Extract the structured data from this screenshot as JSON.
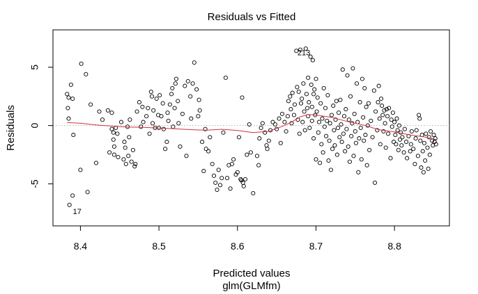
{
  "chart_data": {
    "type": "scatter",
    "title": "Residuals vs Fitted",
    "xlabel": "Predicted values",
    "xlabel_sub": "glm(GLMfm)",
    "ylabel": "Residuals",
    "xlim": [
      8.365,
      8.87
    ],
    "ylim": [
      -8.6,
      8.2
    ],
    "x_ticks": [
      8.4,
      8.5,
      8.6,
      8.7,
      8.8
    ],
    "x_tick_labels": [
      "8.4",
      "8.5",
      "8.6",
      "8.7",
      "8.8"
    ],
    "y_ticks": [
      -5,
      0,
      5
    ],
    "y_tick_labels": [
      "-5",
      "0",
      "5"
    ],
    "reference_line": {
      "y": 0,
      "style": "dotted",
      "color": "#b0b0b0"
    },
    "point_color": "#000000",
    "smooth_color": "#d03040",
    "annotations": [
      {
        "label": "17",
        "x": 8.386,
        "y": -7.1
      },
      {
        "label": "213",
        "x": 8.672,
        "y": 6.5
      }
    ],
    "smooth": {
      "x": [
        8.383,
        8.4,
        8.42,
        8.44,
        8.46,
        8.48,
        8.5,
        8.52,
        8.54,
        8.56,
        8.58,
        8.6,
        8.62,
        8.64,
        8.66,
        8.67,
        8.68,
        8.69,
        8.7,
        8.72,
        8.74,
        8.76,
        8.78,
        8.8,
        8.82,
        8.84,
        8.853
      ],
      "y": [
        0.25,
        0.2,
        0.05,
        -0.05,
        -0.12,
        -0.15,
        -0.22,
        -0.28,
        -0.35,
        -0.4,
        -0.32,
        -0.42,
        -0.6,
        -0.5,
        0.0,
        0.35,
        0.75,
        0.95,
        0.9,
        0.7,
        0.35,
        0.05,
        -0.35,
        -0.55,
        -0.8,
        -1.0,
        -1.2
      ]
    },
    "points": [
      [
        8.386,
        -6.8
      ],
      [
        8.39,
        -6.0
      ],
      [
        8.383,
        2.7
      ],
      [
        8.385,
        2.4
      ],
      [
        8.384,
        1.5
      ],
      [
        8.385,
        0.6
      ],
      [
        8.388,
        3.5
      ],
      [
        8.39,
        2.3
      ],
      [
        8.391,
        -0.8
      ],
      [
        8.4,
        -3.8
      ],
      [
        8.401,
        5.3
      ],
      [
        8.407,
        4.4
      ],
      [
        8.409,
        -5.7
      ],
      [
        8.413,
        1.8
      ],
      [
        8.42,
        -3.2
      ],
      [
        8.424,
        1.2
      ],
      [
        8.428,
        0.5
      ],
      [
        8.435,
        1.3
      ],
      [
        8.437,
        -2.3
      ],
      [
        8.44,
        1.1
      ],
      [
        8.44,
        -0.3
      ],
      [
        8.442,
        -0.6
      ],
      [
        8.442,
        -1.2
      ],
      [
        8.443,
        -1.8
      ],
      [
        8.443,
        -2.5
      ],
      [
        8.445,
        -0.2
      ],
      [
        8.447,
        -0.7
      ],
      [
        8.448,
        -2.7
      ],
      [
        8.452,
        0.3
      ],
      [
        8.455,
        -2.9
      ],
      [
        8.456,
        -1.4
      ],
      [
        8.457,
        -1.9
      ],
      [
        8.458,
        -3.3
      ],
      [
        8.46,
        -0.1
      ],
      [
        8.461,
        -2.6
      ],
      [
        8.462,
        -1.0
      ],
      [
        8.463,
        0.5
      ],
      [
        8.465,
        -3.1
      ],
      [
        8.467,
        -2.1
      ],
      [
        8.469,
        -3.5
      ],
      [
        8.47,
        -3.3
      ],
      [
        8.472,
        1.2
      ],
      [
        8.475,
        2.0
      ],
      [
        8.477,
        -0.1
      ],
      [
        8.479,
        1.6
      ],
      [
        8.48,
        0.3
      ],
      [
        8.484,
        0.8
      ],
      [
        8.486,
        1.5
      ],
      [
        8.488,
        -0.7
      ],
      [
        8.49,
        2.9
      ],
      [
        8.491,
        2.5
      ],
      [
        8.492,
        0.2
      ],
      [
        8.493,
        1.3
      ],
      [
        8.495,
        -0.2
      ],
      [
        8.497,
        2.3
      ],
      [
        8.499,
        0.9
      ],
      [
        8.5,
        -0.2
      ],
      [
        8.501,
        2.6
      ],
      [
        8.503,
        0.8
      ],
      [
        8.505,
        1.9
      ],
      [
        8.506,
        -0.3
      ],
      [
        8.508,
        -2.0
      ],
      [
        8.51,
        -1.4
      ],
      [
        8.511,
        1.1
      ],
      [
        8.512,
        0.4
      ],
      [
        8.514,
        1.8
      ],
      [
        8.516,
        2.7
      ],
      [
        8.517,
        3.2
      ],
      [
        8.518,
        -0.1
      ],
      [
        8.52,
        1.5
      ],
      [
        8.521,
        3.6
      ],
      [
        8.522,
        4.0
      ],
      [
        8.524,
        2.1
      ],
      [
        8.525,
        0.2
      ],
      [
        8.527,
        -1.8
      ],
      [
        8.53,
        1.0
      ],
      [
        8.533,
        3.4
      ],
      [
        8.535,
        -2.6
      ],
      [
        8.537,
        3.8
      ],
      [
        8.54,
        2.5
      ],
      [
        8.541,
        0.6
      ],
      [
        8.543,
        3.6
      ],
      [
        8.545,
        5.4
      ],
      [
        8.548,
        3.1
      ],
      [
        8.55,
        0.8
      ],
      [
        8.551,
        2.2
      ],
      [
        8.552,
        1.3
      ],
      [
        8.555,
        -1.4
      ],
      [
        8.557,
        -3.9
      ],
      [
        8.559,
        -0.3
      ],
      [
        8.56,
        -2.0
      ],
      [
        8.563,
        -2.2
      ],
      [
        8.565,
        -1.0
      ],
      [
        8.568,
        -3.3
      ],
      [
        8.57,
        -4.3
      ],
      [
        8.572,
        -4.9
      ],
      [
        8.574,
        -5.5
      ],
      [
        8.576,
        -3.8
      ],
      [
        8.578,
        -5.1
      ],
      [
        8.58,
        -4.5
      ],
      [
        8.582,
        -0.6
      ],
      [
        8.585,
        4.1
      ],
      [
        8.587,
        -4.5
      ],
      [
        8.589,
        -3.4
      ],
      [
        8.591,
        -5.4
      ],
      [
        8.593,
        -3.3
      ],
      [
        8.595,
        -2.9
      ],
      [
        8.598,
        -4.2
      ],
      [
        8.6,
        -4.0
      ],
      [
        8.602,
        -1.0
      ],
      [
        8.604,
        -4.6
      ],
      [
        8.605,
        -4.7
      ],
      [
        8.606,
        2.4
      ],
      [
        8.607,
        -4.9
      ],
      [
        8.608,
        -5.2
      ],
      [
        8.61,
        -4.6
      ],
      [
        8.612,
        -2.5
      ],
      [
        8.615,
        0.1
      ],
      [
        8.617,
        -2.3
      ],
      [
        8.62,
        -5.8
      ],
      [
        8.625,
        -2.6
      ],
      [
        8.627,
        -3.4
      ],
      [
        8.628,
        -1.1
      ],
      [
        8.63,
        -0.2
      ],
      [
        8.632,
        0.2
      ],
      [
        8.635,
        -0.6
      ],
      [
        8.637,
        -1.7
      ],
      [
        8.638,
        -2.0
      ],
      [
        8.64,
        -1.3
      ],
      [
        8.642,
        -0.4
      ],
      [
        8.645,
        0.3
      ],
      [
        8.648,
        0.1
      ],
      [
        8.65,
        -0.3
      ],
      [
        8.653,
        0.6
      ],
      [
        8.655,
        -1.5
      ],
      [
        8.657,
        1.0
      ],
      [
        8.66,
        0.3
      ],
      [
        8.662,
        -0.5
      ],
      [
        8.664,
        0.8
      ],
      [
        8.665,
        2.1
      ],
      [
        8.667,
        2.5
      ],
      [
        8.668,
        1.4
      ],
      [
        8.669,
        0.2
      ],
      [
        8.67,
        2.8
      ],
      [
        8.672,
        0.9
      ],
      [
        8.673,
        1.8
      ],
      [
        8.675,
        6.4
      ],
      [
        8.676,
        3.3
      ],
      [
        8.677,
        0.5
      ],
      [
        8.678,
        2.9
      ],
      [
        8.679,
        -0.7
      ],
      [
        8.68,
        6.5
      ],
      [
        8.681,
        1.9
      ],
      [
        8.682,
        2.3
      ],
      [
        8.683,
        0.3
      ],
      [
        8.684,
        3.6
      ],
      [
        8.685,
        1.2
      ],
      [
        8.686,
        -0.4
      ],
      [
        8.687,
        6.6
      ],
      [
        8.688,
        2.7
      ],
      [
        8.689,
        1.5
      ],
      [
        8.69,
        4.1
      ],
      [
        8.69,
        0.8
      ],
      [
        8.691,
        2.0
      ],
      [
        8.692,
        -0.2
      ],
      [
        8.693,
        5.9
      ],
      [
        8.694,
        3.5
      ],
      [
        8.695,
        0.4
      ],
      [
        8.695,
        1.6
      ],
      [
        8.696,
        5.6
      ],
      [
        8.697,
        2.7
      ],
      [
        8.697,
        -1.1
      ],
      [
        8.698,
        3.1
      ],
      [
        8.699,
        0.9
      ],
      [
        8.7,
        4.0
      ],
      [
        8.7,
        -2.9
      ],
      [
        8.701,
        1.2
      ],
      [
        8.702,
        2.4
      ],
      [
        8.703,
        -0.6
      ],
      [
        8.704,
        0.3
      ],
      [
        8.705,
        -3.2
      ],
      [
        8.706,
        1.9
      ],
      [
        8.707,
        -1.6
      ],
      [
        8.708,
        0.6
      ],
      [
        8.709,
        -2.3
      ],
      [
        8.71,
        3.2
      ],
      [
        8.711,
        -0.1
      ],
      [
        8.712,
        1.5
      ],
      [
        8.713,
        -0.9
      ],
      [
        8.714,
        0.4
      ],
      [
        8.715,
        2.6
      ],
      [
        8.716,
        -3.0
      ],
      [
        8.717,
        -1.3
      ],
      [
        8.718,
        0.2
      ],
      [
        8.719,
        -3.8
      ],
      [
        8.72,
        0.9
      ],
      [
        8.721,
        -2.0
      ],
      [
        8.722,
        1.7
      ],
      [
        8.723,
        -0.4
      ],
      [
        8.724,
        -1.7
      ],
      [
        8.725,
        0.5
      ],
      [
        8.726,
        2.1
      ],
      [
        8.727,
        -2.5
      ],
      [
        8.728,
        -0.2
      ],
      [
        8.729,
        1.1
      ],
      [
        8.73,
        -1.0
      ],
      [
        8.731,
        2.2
      ],
      [
        8.732,
        0.1
      ],
      [
        8.733,
        -1.4
      ],
      [
        8.734,
        4.8
      ],
      [
        8.735,
        -0.7
      ],
      [
        8.736,
        0.8
      ],
      [
        8.737,
        -2.2
      ],
      [
        8.738,
        1.4
      ],
      [
        8.739,
        -0.3
      ],
      [
        8.74,
        4.3
      ],
      [
        8.741,
        -1.8
      ],
      [
        8.742,
        0.5
      ],
      [
        8.743,
        -3.1
      ],
      [
        8.744,
        2.5
      ],
      [
        8.745,
        -0.9
      ],
      [
        8.746,
        0.2
      ],
      [
        8.747,
        4.9
      ],
      [
        8.748,
        -2.6
      ],
      [
        8.749,
        1.0
      ],
      [
        8.75,
        -0.5
      ],
      [
        8.751,
        -1.5
      ],
      [
        8.752,
        3.6
      ],
      [
        8.753,
        0.3
      ],
      [
        8.754,
        -4.0
      ],
      [
        8.755,
        -1.1
      ],
      [
        8.756,
        2.0
      ],
      [
        8.757,
        -0.2
      ],
      [
        8.758,
        -2.9
      ],
      [
        8.759,
        4.0
      ],
      [
        8.76,
        0.7
      ],
      [
        8.761,
        -1.3
      ],
      [
        8.762,
        3.2
      ],
      [
        8.763,
        -0.8
      ],
      [
        8.764,
        1.6
      ],
      [
        8.765,
        -3.4
      ],
      [
        8.766,
        0.0
      ],
      [
        8.767,
        1.9
      ],
      [
        8.768,
        -2.1
      ],
      [
        8.77,
        0.4
      ],
      [
        8.772,
        -1.0
      ],
      [
        8.774,
        3.0
      ],
      [
        8.775,
        -4.9
      ],
      [
        8.776,
        1.2
      ],
      [
        8.778,
        -0.4
      ],
      [
        8.779,
        2.0
      ],
      [
        8.78,
        3.4
      ],
      [
        8.781,
        0.6
      ],
      [
        8.782,
        -1.6
      ],
      [
        8.783,
        2.3
      ],
      [
        8.784,
        1.7
      ],
      [
        8.785,
        0.9
      ],
      [
        8.786,
        -0.5
      ],
      [
        8.787,
        1.3
      ],
      [
        8.788,
        0.2
      ],
      [
        8.789,
        -1.9
      ],
      [
        8.79,
        1.4
      ],
      [
        8.791,
        0.8
      ],
      [
        8.792,
        -0.7
      ],
      [
        8.793,
        1.5
      ],
      [
        8.795,
        -2.8
      ],
      [
        8.796,
        0.5
      ],
      [
        8.797,
        -0.1
      ],
      [
        8.798,
        1.1
      ],
      [
        8.799,
        -1.4
      ],
      [
        8.8,
        0.3
      ],
      [
        8.801,
        -0.8
      ],
      [
        8.802,
        -1.6
      ],
      [
        8.803,
        0.6
      ],
      [
        8.804,
        -0.4
      ],
      [
        8.805,
        -2.1
      ],
      [
        8.806,
        0.0
      ],
      [
        8.807,
        -1.2
      ],
      [
        8.808,
        -0.6
      ],
      [
        8.809,
        -1.7
      ],
      [
        8.81,
        -1.0
      ],
      [
        8.812,
        -2.3
      ],
      [
        8.813,
        -0.3
      ],
      [
        8.815,
        -1.4
      ],
      [
        8.816,
        -2.8
      ],
      [
        8.818,
        -0.9
      ],
      [
        8.82,
        -2.2
      ],
      [
        8.821,
        -1.6
      ],
      [
        8.822,
        -0.5
      ],
      [
        8.824,
        -2.0
      ],
      [
        8.826,
        -3.3
      ],
      [
        8.827,
        -1.1
      ],
      [
        8.828,
        -0.4
      ],
      [
        8.83,
        -2.6
      ],
      [
        8.831,
        0.9
      ],
      [
        8.832,
        0.6
      ],
      [
        8.833,
        -1.3
      ],
      [
        8.834,
        -3.6
      ],
      [
        8.835,
        -0.8
      ],
      [
        8.836,
        -2.2
      ],
      [
        8.837,
        -4.0
      ],
      [
        8.838,
        -1.5
      ],
      [
        8.839,
        -3.0
      ],
      [
        8.84,
        -0.7
      ],
      [
        8.842,
        -1.9
      ],
      [
        8.843,
        -3.7
      ],
      [
        8.844,
        -1.0
      ],
      [
        8.845,
        -2.5
      ],
      [
        8.846,
        -0.5
      ],
      [
        8.848,
        -1.3
      ],
      [
        8.849,
        -1.7
      ],
      [
        8.85,
        -0.8
      ],
      [
        8.851,
        -1.4
      ],
      [
        8.852,
        -1.1
      ],
      [
        8.853,
        -1.6
      ]
    ]
  }
}
